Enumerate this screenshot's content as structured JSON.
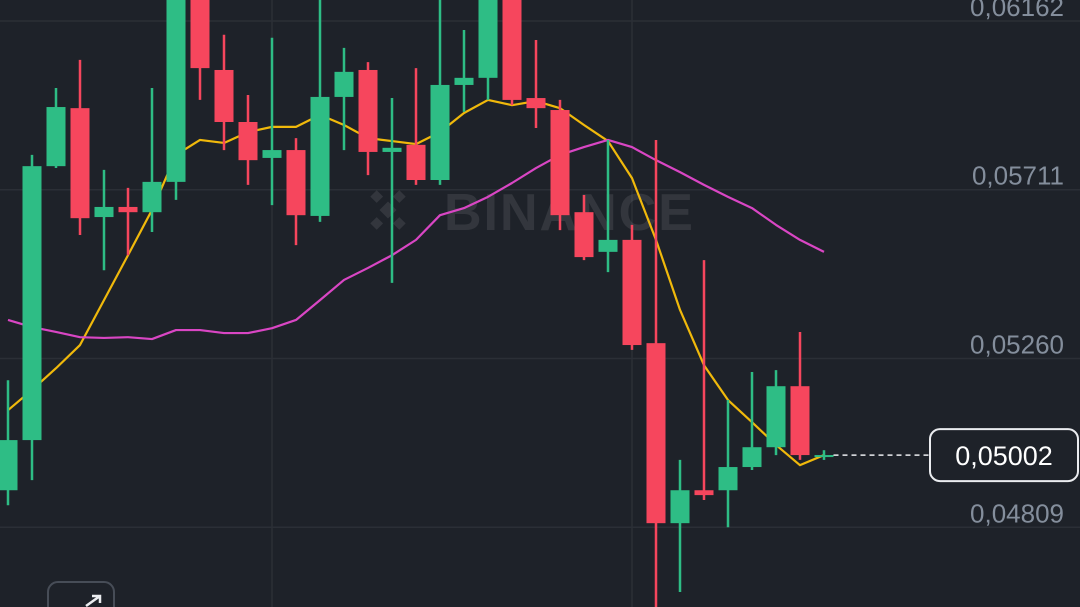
{
  "chart_data": {
    "type": "candlestick",
    "watermark": "BINANCE",
    "ylim": [
      0.04596,
      0.06218
    ],
    "yticks": [
      {
        "value": 0.06162,
        "label": "0,06162"
      },
      {
        "value": 0.05711,
        "label": "0,05711"
      },
      {
        "value": 0.0526,
        "label": "0,05260"
      },
      {
        "value": 0.04809,
        "label": "0,04809"
      }
    ],
    "grid": true,
    "up_color": "#2ebd85",
    "down_color": "#f6465d",
    "open": [
      0.04908,
      0.05042,
      0.05774,
      0.05929,
      0.05638,
      0.05665,
      0.05651,
      0.05732,
      0.06245,
      0.06031,
      0.05892,
      0.05796,
      0.05817,
      0.05641,
      0.05959,
      0.06031,
      0.05812,
      0.05831,
      0.05737,
      0.05991,
      0.0601,
      0.06245,
      0.05956,
      0.05924,
      0.05651,
      0.05545,
      0.05577,
      0.05301,
      0.0482,
      0.04908,
      0.04908,
      0.0497,
      0.05023,
      0.05186,
      0.04997
    ],
    "high": [
      0.05202,
      0.05804,
      0.05983,
      0.06058,
      0.05764,
      0.05716,
      0.05983,
      0.06298,
      0.06298,
      0.06125,
      0.05964,
      0.06117,
      0.05849,
      0.06245,
      0.0609,
      0.06052,
      0.05956,
      0.06036,
      0.06245,
      0.06138,
      0.06298,
      0.06298,
      0.06111,
      0.05951,
      0.05697,
      0.05844,
      0.05617,
      0.05844,
      0.04989,
      0.05523,
      0.05149,
      0.05224,
      0.05229,
      0.05331,
      0.05015
    ],
    "low": [
      0.04868,
      0.04935,
      0.05769,
      0.0559,
      0.05496,
      0.05536,
      0.05598,
      0.05684,
      0.05951,
      0.05817,
      0.05724,
      0.0567,
      0.05563,
      0.05625,
      0.05817,
      0.0575,
      0.05462,
      0.05724,
      0.05724,
      0.05919,
      0.05951,
      0.05937,
      0.05876,
      0.05603,
      0.05523,
      0.05491,
      0.05283,
      0.0456,
      0.04636,
      0.04882,
      0.04809,
      0.04962,
      0.05002,
      0.04989,
      0.04989
    ],
    "close": [
      0.05042,
      0.05774,
      0.05932,
      0.05635,
      0.05665,
      0.05651,
      0.05732,
      0.06245,
      0.06036,
      0.05892,
      0.0579,
      0.05817,
      0.05643,
      0.05959,
      0.06026,
      0.05812,
      0.05823,
      0.05737,
      0.05991,
      0.0601,
      0.06245,
      0.05951,
      0.05929,
      0.05643,
      0.05531,
      0.05577,
      0.05296,
      0.0482,
      0.04908,
      0.04895,
      0.0497,
      0.05023,
      0.05186,
      0.05002,
      0.05002
    ],
    "series": [
      {
        "color": "#f0b90b",
        "values": [
          0.05122,
          0.05176,
          0.05234,
          0.05296,
          0.05416,
          0.05536,
          0.05657,
          0.05804,
          0.05844,
          0.05836,
          0.05865,
          0.05879,
          0.05879,
          0.05911,
          0.05884,
          0.05849,
          0.05841,
          0.05833,
          0.05865,
          0.05916,
          0.05951,
          0.05937,
          0.05948,
          0.05929,
          0.05884,
          0.05841,
          0.05742,
          0.05577,
          0.0539,
          0.05242,
          0.05149,
          0.0509,
          0.05029,
          0.04975,
          0.05002
        ]
      },
      {
        "color": "#d946c4",
        "values": [
          0.05363,
          0.05344,
          0.05331,
          0.05317,
          0.05315,
          0.05317,
          0.05312,
          0.05336,
          0.05336,
          0.05328,
          0.05328,
          0.05341,
          0.05363,
          0.05416,
          0.0547,
          0.05502,
          0.05536,
          0.05577,
          0.05643,
          0.05662,
          0.05692,
          0.05729,
          0.05769,
          0.05804,
          0.05825,
          0.05844,
          0.05825,
          0.0579,
          0.05758,
          0.05724,
          0.05692,
          0.05662,
          0.05617,
          0.05577,
          0.05545
        ]
      }
    ],
    "last_price": {
      "value": 0.05002,
      "label": "0,05002"
    }
  }
}
